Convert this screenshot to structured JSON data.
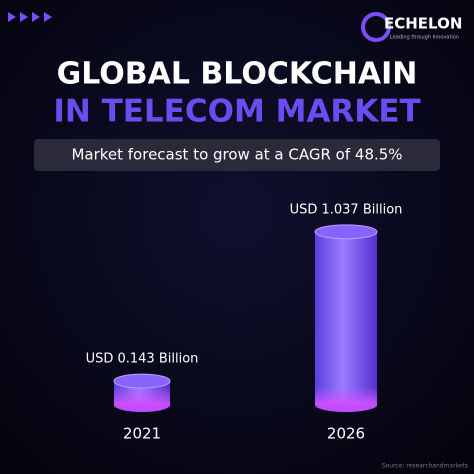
{
  "brand": {
    "name": "ECHELON",
    "tagline": "Leading through Innovation"
  },
  "chart_data": {
    "type": "bar",
    "title": "GLOBAL BLOCKCHAIN",
    "title_line2": "IN TELECOM MARKET",
    "subtitle": "Market forecast to grow at a CAGR of 48.5%",
    "categories": [
      "2021",
      "2026"
    ],
    "values": [
      0.143,
      1.037
    ],
    "value_labels": [
      "USD 0.143 Billion",
      "USD 1.037 Billion"
    ],
    "color": "#8a62ff",
    "source": "Source: researchandmarkets"
  }
}
